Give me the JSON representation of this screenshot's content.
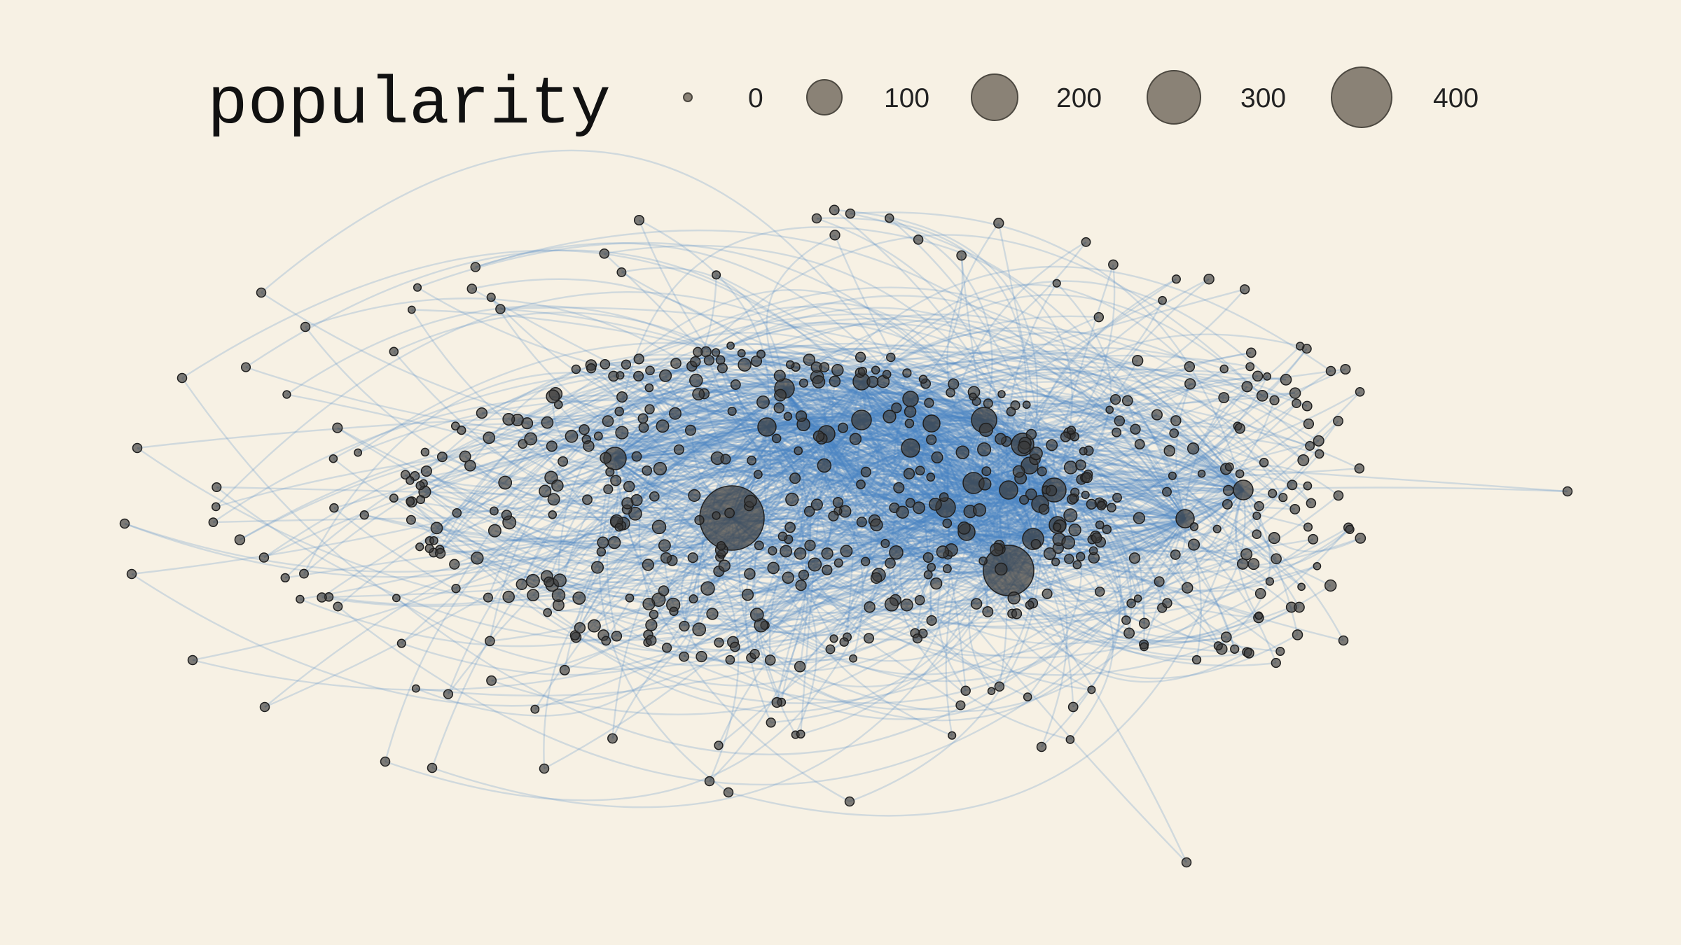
{
  "legend": {
    "title": "popularity",
    "ticks": [
      0,
      100,
      200,
      300,
      400
    ]
  },
  "colors": {
    "background": "#f7f1e4",
    "edge": "#4a86c2",
    "node_fill": "#3a3a3a",
    "node_stroke": "#1f1f1f",
    "legend_fill": "#8a8276",
    "legend_stroke": "#4c4840"
  }
}
